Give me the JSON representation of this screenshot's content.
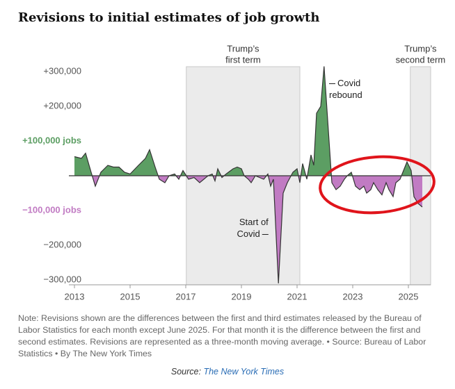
{
  "chart_data": {
    "type": "area",
    "title": "Revisions to initial estimates of job growth",
    "x": [
      2013.0,
      2013.25,
      2013.4,
      2013.6,
      2013.75,
      2013.95,
      2014.2,
      2014.4,
      2014.6,
      2014.8,
      2015.0,
      2015.3,
      2015.55,
      2015.7,
      2015.9,
      2016.05,
      2016.25,
      2016.4,
      2016.6,
      2016.75,
      2016.9,
      2017.1,
      2017.3,
      2017.5,
      2017.65,
      2017.8,
      2017.95,
      2018.05,
      2018.15,
      2018.3,
      2018.45,
      2018.7,
      2018.85,
      2019.0,
      2019.1,
      2019.25,
      2019.35,
      2019.5,
      2019.65,
      2019.8,
      2019.95,
      2020.05,
      2020.15,
      2020.33,
      2020.5,
      2020.65,
      2020.85,
      2021.0,
      2021.1,
      2021.2,
      2021.35,
      2021.5,
      2021.6,
      2021.7,
      2021.85,
      2021.97,
      2022.15,
      2022.25,
      2022.4,
      2022.55,
      2022.7,
      2022.8,
      2022.95,
      2023.1,
      2023.25,
      2023.4,
      2023.5,
      2023.65,
      2023.75,
      2023.9,
      2024.05,
      2024.2,
      2024.3,
      2024.45,
      2024.55,
      2024.7,
      2024.85,
      2024.95,
      2025.1,
      2025.2,
      2025.35,
      2025.5
    ],
    "values": [
      55000,
      50000,
      65000,
      10000,
      -30000,
      10000,
      30000,
      25000,
      25000,
      10000,
      5000,
      30000,
      50000,
      75000,
      25000,
      -10000,
      -20000,
      0,
      5000,
      -10000,
      15000,
      -10000,
      -5000,
      -20000,
      -10000,
      0,
      5000,
      -15000,
      20000,
      -5000,
      5000,
      20000,
      25000,
      20000,
      0,
      -10000,
      -20000,
      0,
      -5000,
      -10000,
      5000,
      -30000,
      -10000,
      -310000,
      -50000,
      -20000,
      10000,
      20000,
      -20000,
      35000,
      -10000,
      60000,
      30000,
      180000,
      200000,
      315000,
      100000,
      -20000,
      -40000,
      -30000,
      -10000,
      0,
      10000,
      -30000,
      -40000,
      -30000,
      -50000,
      -40000,
      -20000,
      -40000,
      -55000,
      -20000,
      -40000,
      -60000,
      -20000,
      -10000,
      20000,
      40000,
      15000,
      -60000,
      -80000,
      -90000
    ],
    "positive_color": "#5c9e63",
    "negative_color": "#c17bc3",
    "line_color": "#333333",
    "xlim": [
      2012.8,
      2025.8
    ],
    "ylim": [
      -310000,
      320000
    ],
    "xticks": [
      2013,
      2015,
      2017,
      2019,
      2021,
      2023,
      2025
    ],
    "yticks": [
      {
        "value": 300000,
        "label": "+300,000"
      },
      {
        "value": 200000,
        "label": "+200,000"
      },
      {
        "value": 100000,
        "label": "+100,000 jobs",
        "bold": true
      },
      {
        "value": -100000,
        "label": "−100,000 jobs",
        "bold": true
      },
      {
        "value": -200000,
        "label": "−200,000"
      },
      {
        "value": -300000,
        "label": "−300,000"
      }
    ],
    "shaded_regions": [
      {
        "label_lines": [
          "Trump’s",
          "first term"
        ],
        "start": 2017.02,
        "end": 2021.1
      },
      {
        "label_lines": [
          "Trump’s",
          "second term"
        ],
        "start": 2025.07,
        "end": 2025.8
      }
    ],
    "annotations": [
      {
        "lines": [
          "Covid",
          "rebound"
        ],
        "x": 2022.15,
        "y": 265000,
        "align": "left"
      },
      {
        "lines": [
          "Start of",
          "Covid"
        ],
        "x": 2019.97,
        "y": -135000,
        "align": "right"
      }
    ]
  },
  "note": "Note: Revisions shown are the differences between the first and third estimates released by the Bureau of Labor Statistics for each month except June 2025. For that month it is the difference between the first and second estimates. Revisions are represented as a three-month moving average. • Source: Bureau of Labor Statistics • By The New York Times",
  "source_label": "Source:",
  "source_name": "The New York Times"
}
